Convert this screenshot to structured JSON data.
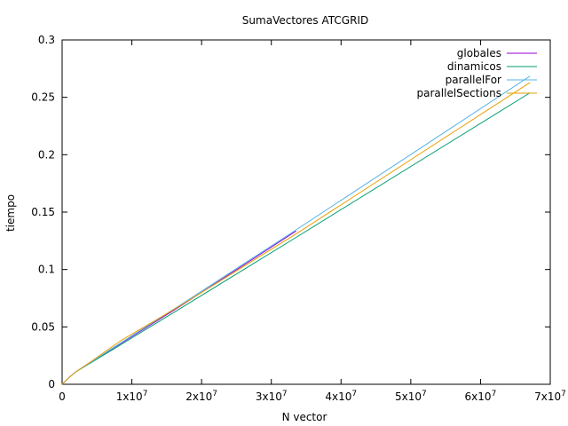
{
  "chart_data": {
    "type": "line",
    "title": "SumaVectores ATCGRID",
    "xlabel": "N vector",
    "ylabel": "tiempo",
    "xlim": [
      0,
      70000000
    ],
    "ylim": [
      0,
      0.3
    ],
    "grid": false,
    "legend_position": "top-right",
    "x_ticks": [
      {
        "value": 0,
        "label": "0",
        "exp": ""
      },
      {
        "value": 10000000,
        "label": "1x10",
        "exp": "7"
      },
      {
        "value": 20000000,
        "label": "2x10",
        "exp": "7"
      },
      {
        "value": 30000000,
        "label": "3x10",
        "exp": "7"
      },
      {
        "value": 40000000,
        "label": "4x10",
        "exp": "7"
      },
      {
        "value": 50000000,
        "label": "5x10",
        "exp": "7"
      },
      {
        "value": 60000000,
        "label": "6x10",
        "exp": "7"
      },
      {
        "value": 70000000,
        "label": "7x10",
        "exp": "7"
      }
    ],
    "y_ticks": [
      {
        "value": 0,
        "label": "0"
      },
      {
        "value": 0.05,
        "label": "0.05"
      },
      {
        "value": 0.1,
        "label": "0.1"
      },
      {
        "value": 0.15,
        "label": "0.15"
      },
      {
        "value": 0.2,
        "label": "0.2"
      },
      {
        "value": 0.25,
        "label": "0.25"
      },
      {
        "value": 0.3,
        "label": "0.3"
      }
    ],
    "series": [
      {
        "name": "globales",
        "color": "#9400d3",
        "x": [
          0,
          1000000,
          2000000,
          4200000,
          8400000,
          16800000,
          33554432
        ],
        "y": [
          0,
          0.006,
          0.011,
          0.0195,
          0.0355,
          0.0675,
          0.1335
        ]
      },
      {
        "name": "dinamicos",
        "color": "#009e73",
        "x": [
          0,
          1000000,
          2000000,
          4200000,
          8400000,
          16800000,
          33554432,
          67108864
        ],
        "y": [
          0,
          0.006,
          0.011,
          0.019,
          0.0345,
          0.0655,
          0.128,
          0.254
        ]
      },
      {
        "name": "parallelFor",
        "color": "#56b4e9",
        "x": [
          0,
          1000000,
          2000000,
          4200000,
          8400000,
          16800000,
          33554432,
          67108864
        ],
        "y": [
          0,
          0.006,
          0.011,
          0.0195,
          0.036,
          0.0685,
          0.1345,
          0.2685
        ]
      },
      {
        "name": "parallelSections",
        "color": "#e69f00",
        "x": [
          0,
          1000000,
          2000000,
          4200000,
          8400000,
          16800000,
          33554432,
          67108864
        ],
        "y": [
          0,
          0.006,
          0.011,
          0.02,
          0.038,
          0.068,
          0.131,
          0.263
        ]
      }
    ]
  }
}
